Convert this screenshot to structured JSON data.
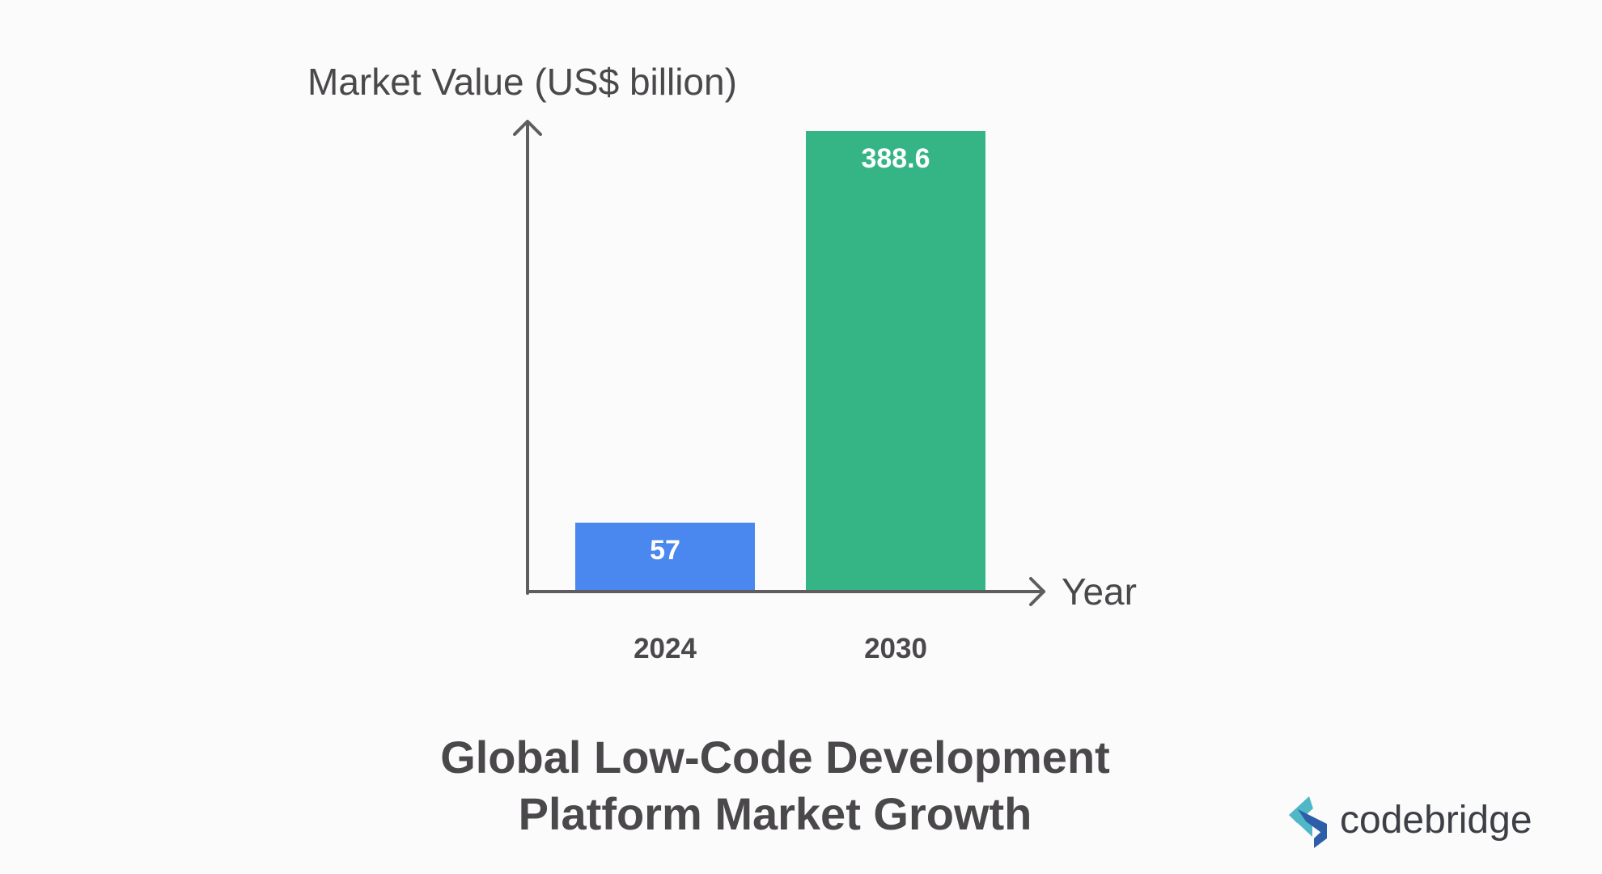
{
  "chart_data": {
    "type": "bar",
    "categories": [
      "2024",
      "2030"
    ],
    "values": [
      57,
      388.6
    ],
    "value_labels": [
      "57",
      "388.6"
    ],
    "title_lines": [
      "Global Low-Code Development",
      "Platform Market Growth"
    ],
    "xlabel": "Year",
    "ylabel": "Market Value (US$ billion)",
    "ylim": [
      0,
      388.6
    ],
    "grid": false,
    "legend": "none",
    "bar_colors": [
      "#4a87ee",
      "#35b585"
    ]
  },
  "brand": {
    "name": "codebridge",
    "colors": {
      "logo_light": "#4fb7c6",
      "logo_dark": "#2c5fa8",
      "text": "#3d3f46"
    }
  },
  "colors": {
    "background": "#fbfbfb",
    "axis": "#5f5d5f",
    "text": "#4a484b"
  }
}
